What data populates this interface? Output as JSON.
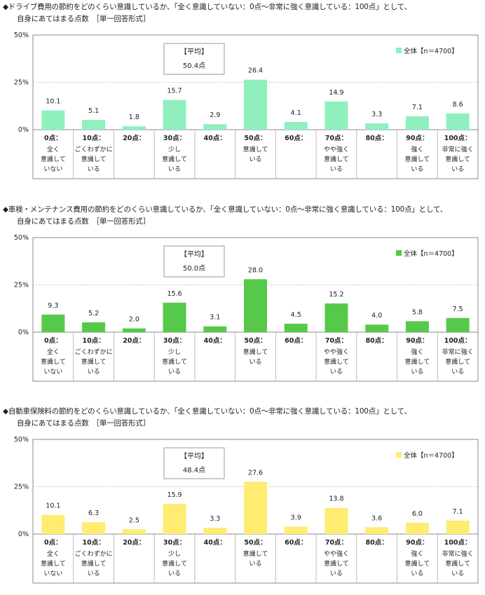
{
  "chart_data": [
    {
      "type": "bar",
      "question": "◆ドライブ費用の節約をどのくらい意識しているか、「全く意識していない：0点～非常に強く意識している：100点」として、",
      "subtitle": "自身にあてはまる点数　［単一回答形式］",
      "categories": [
        "0点",
        "10点",
        "20点",
        "30点",
        "40点",
        "50点",
        "60点",
        "70点",
        "80点",
        "90点",
        "100点"
      ],
      "category_notes": [
        [
          "全く",
          "意識して",
          "いない"
        ],
        [
          "ごくわずかに",
          "意識して",
          "いる"
        ],
        [],
        [
          "少し",
          "意識して",
          "いる"
        ],
        [],
        [
          "意識して",
          "いる"
        ],
        [],
        [
          "やや強く",
          "意識して",
          "いる"
        ],
        [],
        [
          "強く",
          "意識して",
          "いる"
        ],
        [
          "非常に強く",
          "意識して",
          "いる"
        ]
      ],
      "values": [
        10.1,
        5.1,
        1.8,
        15.7,
        2.9,
        26.4,
        4.1,
        14.9,
        3.3,
        7.1,
        8.6
      ],
      "value_labels": [
        "10.1",
        "5.1",
        "1.8",
        "15.7",
        "2.9",
        "26.4",
        "4.1",
        "14.9",
        "3.3",
        "7.1",
        "8.6"
      ],
      "yticks": [
        "0%",
        "25%",
        "50%"
      ],
      "ylim": [
        0,
        50
      ],
      "average_title": "【平均】",
      "average_value": "50.4点",
      "legend": "全体【n＝4700】",
      "color": "#8ff0bd"
    },
    {
      "type": "bar",
      "question": "◆車検・メンテナンス費用の節約をどのくらい意識しているか、「全く意識していない：0点～非常に強く意識している：100点」として、",
      "subtitle": "自身にあてはまる点数　［単一回答形式］",
      "categories": [
        "0点",
        "10点",
        "20点",
        "30点",
        "40点",
        "50点",
        "60点",
        "70点",
        "80点",
        "90点",
        "100点"
      ],
      "category_notes": [
        [
          "全く",
          "意識して",
          "いない"
        ],
        [
          "ごくわずかに",
          "意識して",
          "いる"
        ],
        [],
        [
          "少し",
          "意識して",
          "いる"
        ],
        [],
        [
          "意識して",
          "いる"
        ],
        [],
        [
          "やや強く",
          "意識して",
          "いる"
        ],
        [],
        [
          "強く",
          "意識して",
          "いる"
        ],
        [
          "非常に強く",
          "意識して",
          "いる"
        ]
      ],
      "values": [
        9.3,
        5.2,
        2.0,
        15.6,
        3.1,
        28.0,
        4.5,
        15.2,
        4.0,
        5.8,
        7.5
      ],
      "value_labels": [
        "9.3",
        "5.2",
        "2.0",
        "15.6",
        "3.1",
        "28.0",
        "4.5",
        "15.2",
        "4.0",
        "5.8",
        "7.5"
      ],
      "yticks": [
        "0%",
        "25%",
        "50%"
      ],
      "ylim": [
        0,
        50
      ],
      "average_title": "【平均】",
      "average_value": "50.0点",
      "legend": "全体【n＝4700】",
      "color": "#56c94b"
    },
    {
      "type": "bar",
      "question": "◆自動車保険料の節約をどのくらい意識しているか、「全く意識していない：0点～非常に強く意識している：100点」として、",
      "subtitle": "自身にあてはまる点数　［単一回答形式］",
      "categories": [
        "0点",
        "10点",
        "20点",
        "30点",
        "40点",
        "50点",
        "60点",
        "70点",
        "80点",
        "90点",
        "100点"
      ],
      "category_notes": [
        [
          "全く",
          "意識して",
          "いない"
        ],
        [
          "ごくわずかに",
          "意識して",
          "いる"
        ],
        [],
        [
          "少し",
          "意識して",
          "いる"
        ],
        [],
        [
          "意識して",
          "いる"
        ],
        [],
        [
          "やや強く",
          "意識して",
          "いる"
        ],
        [],
        [
          "強く",
          "意識して",
          "いる"
        ],
        [
          "非常に強く",
          "意識して",
          "いる"
        ]
      ],
      "values": [
        10.1,
        6.3,
        2.5,
        15.9,
        3.3,
        27.6,
        3.9,
        13.8,
        3.6,
        6.0,
        7.1
      ],
      "value_labels": [
        "10.1",
        "6.3",
        "2.5",
        "15.9",
        "3.3",
        "27.6",
        "3.9",
        "13.8",
        "3.6",
        "6.0",
        "7.1"
      ],
      "yticks": [
        "0%",
        "25%",
        "50%"
      ],
      "ylim": [
        0,
        50
      ],
      "average_title": "【平均】",
      "average_value": "48.4点",
      "legend": "全体【n＝4700】",
      "color": "#ffec70"
    }
  ]
}
